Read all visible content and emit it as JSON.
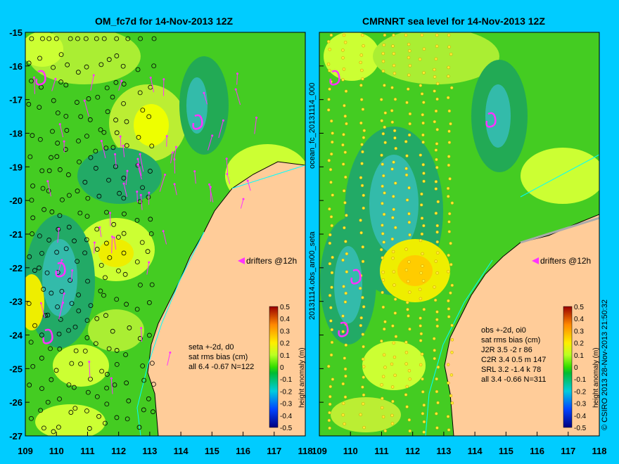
{
  "panels": [
    {
      "title": "OM_fc7d for 14-Nov-2013 12Z",
      "stats": [
        "seta +-2d, d0",
        "sat rms bias (cm)",
        "all 6.4 -0.67 N=122"
      ]
    },
    {
      "title": "CMRNRT sea level  for 14-Nov-2013 12Z",
      "stats": [
        "obs +-2d, oi0",
        "sat rms bias (cm)",
        "J2R   3.5 -2 r 86",
        "C2R   3.4 0.5 m 147",
        "SRL   3.2 -1.4 k 78",
        "all   3.4 -0.66 N=311"
      ]
    }
  ],
  "axes": {
    "lon_ticks": [
      "109",
      "110",
      "111",
      "112",
      "113",
      "114",
      "115",
      "116",
      "117",
      "118"
    ],
    "lat_ticks": [
      "-15",
      "-16",
      "-17",
      "-18",
      "-19",
      "-20",
      "-21",
      "-22",
      "-23",
      "-24",
      "-25",
      "-26",
      "-27"
    ],
    "lon_range": [
      109,
      118
    ],
    "lat_range": [
      -15,
      -27
    ]
  },
  "colorbar": {
    "label": "height anomaly (m)",
    "ticks": [
      "0.5",
      "0.4",
      "0.3",
      "0.2",
      "0.1",
      "0",
      "-0.1",
      "-0.2",
      "-0.3",
      "-0.4",
      "-0.5"
    ],
    "range": [
      -0.5,
      0.5
    ]
  },
  "drifters_label": "drifters @12h",
  "side_labels": {
    "left_file": "20131114.obs_an00_seta",
    "left_file_top": "ocean_fc_20131114_000",
    "copyright": "© CSIRO 2013   28-Nov-2013 21:50:32"
  },
  "colors": {
    "background": "#00ccff",
    "land": "#ffcc99",
    "drifter": "#ff33ff"
  }
}
